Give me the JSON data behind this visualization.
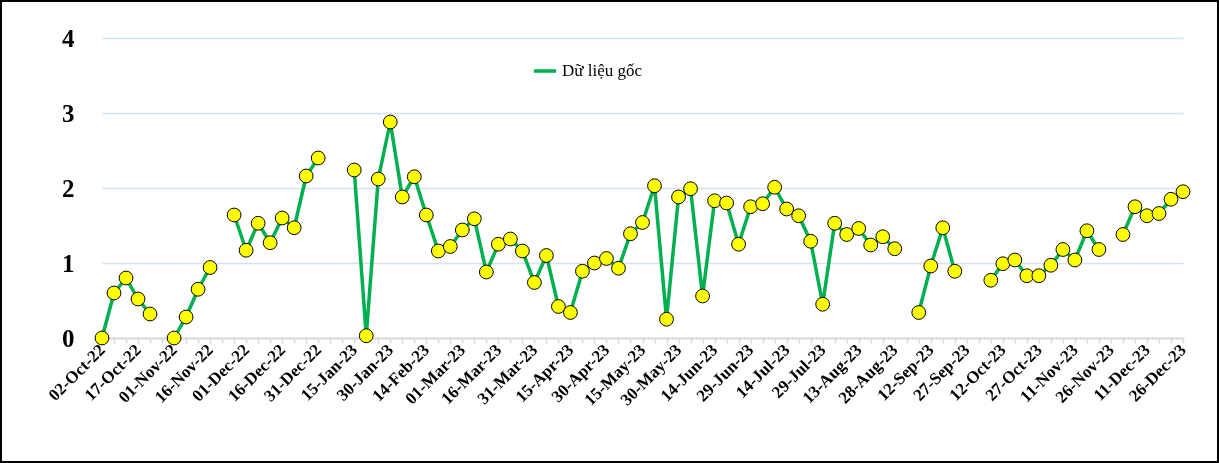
{
  "chart_data": {
    "type": "line",
    "categories": [
      "02-Oct-22",
      null,
      null,
      "17-Oct-22",
      null,
      null,
      "01-Nov-22",
      null,
      null,
      "16-Nov-22",
      null,
      null,
      "01-Dec-22",
      null,
      null,
      "16-Dec-22",
      null,
      null,
      "31-Dec-22",
      null,
      null,
      "15-Jan-23",
      null,
      null,
      "30-Jan-23",
      null,
      null,
      "14-Feb-23",
      null,
      null,
      "01-Mar-23",
      null,
      null,
      "16-Mar-23",
      null,
      null,
      "31-Mar-23",
      null,
      null,
      "15-Apr-23",
      null,
      null,
      "30-Apr-23",
      null,
      null,
      "15-May-23",
      null,
      null,
      "30-May-23",
      null,
      null,
      "14-Jun-23",
      null,
      null,
      "29-Jun-23",
      null,
      null,
      "14-Jul-23",
      null,
      null,
      "29-Jul-23",
      null,
      null,
      "13-Aug-23",
      null,
      null,
      "28-Aug-23",
      null,
      null,
      "12-Sep-23",
      null,
      null,
      "27-Sep-23",
      null,
      null,
      "12-Oct-23",
      null,
      null,
      "27-Oct-23",
      null,
      null,
      "11-Nov-23",
      null,
      null,
      "26-Nov-23",
      null,
      null,
      "11-Dec-23",
      null,
      null,
      "26-Dec-23"
    ],
    "series": [
      {
        "name": "Dữ liệu gốc",
        "color": "#00b050",
        "values": [
          0.0,
          0.6,
          0.8,
          0.52,
          0.32,
          null,
          0.0,
          0.28,
          0.65,
          0.94,
          null,
          1.64,
          1.17,
          1.53,
          1.27,
          1.6,
          1.47,
          2.16,
          2.4,
          null,
          null,
          2.24,
          0.03,
          2.12,
          2.88,
          1.88,
          2.15,
          1.64,
          1.16,
          1.22,
          1.44,
          1.59,
          0.88,
          1.25,
          1.32,
          1.16,
          0.74,
          1.1,
          0.42,
          0.34,
          0.89,
          1.0,
          1.06,
          0.93,
          1.39,
          1.54,
          2.03,
          0.25,
          1.88,
          1.99,
          0.56,
          1.83,
          1.8,
          1.25,
          1.75,
          1.79,
          2.01,
          1.72,
          1.63,
          1.29,
          0.45,
          1.53,
          1.38,
          1.46,
          1.24,
          1.35,
          1.19,
          null,
          0.34,
          0.96,
          1.47,
          0.89,
          null,
          null,
          0.77,
          0.99,
          1.04,
          0.83,
          0.83,
          0.97,
          1.18,
          1.04,
          1.43,
          1.18,
          null,
          1.38,
          1.75,
          1.63,
          1.66,
          1.85,
          1.95
        ]
      }
    ],
    "ylim": [
      0,
      4
    ],
    "yticks": [
      0,
      1,
      2,
      3,
      4
    ],
    "grid": "y",
    "legend": "top",
    "marker": "circle"
  }
}
